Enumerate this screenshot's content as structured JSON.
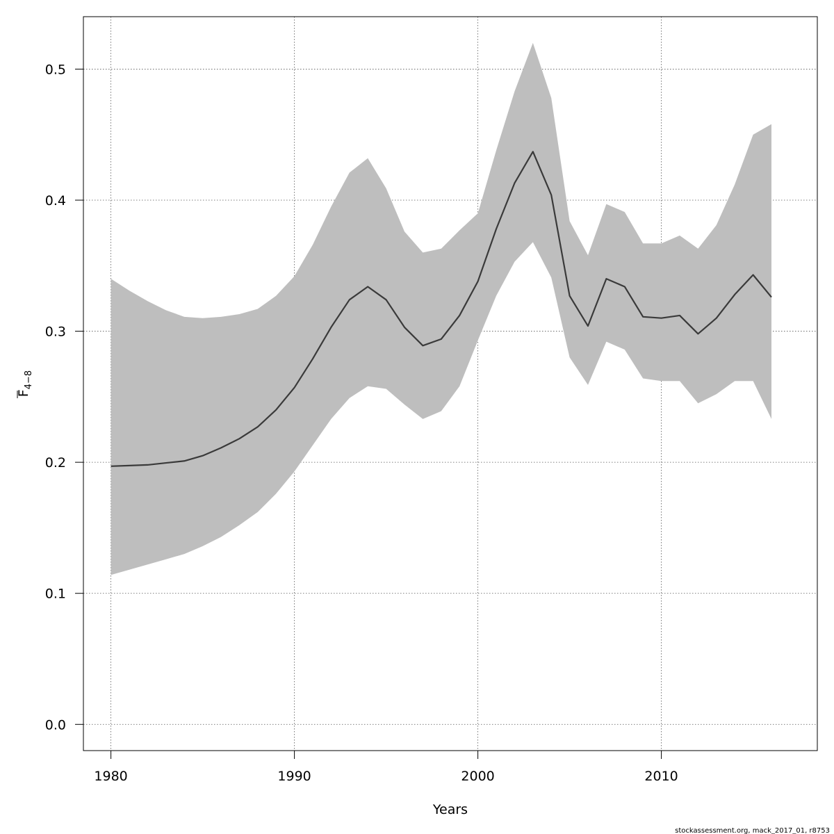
{
  "chart_data": {
    "type": "line",
    "xlabel": "Years",
    "ylabel": {
      "symbol": "F",
      "subscript": "4−8"
    },
    "xlim": [
      1978.5,
      2018.5
    ],
    "ylim": [
      -0.02,
      0.54
    ],
    "x_ticks": [
      1980,
      1990,
      2000,
      2010
    ],
    "y_ticks": [
      0.0,
      0.1,
      0.2,
      0.3,
      0.4,
      0.5
    ],
    "y_tick_labels": [
      "0.0",
      "0.1",
      "0.2",
      "0.3",
      "0.4",
      "0.5"
    ],
    "grid": true,
    "x": [
      1980,
      1981,
      1982,
      1983,
      1984,
      1985,
      1986,
      1987,
      1988,
      1989,
      1990,
      1991,
      1992,
      1993,
      1994,
      1995,
      1996,
      1997,
      1998,
      1999,
      2000,
      2001,
      2002,
      2003,
      2004,
      2005,
      2006,
      2007,
      2008,
      2009,
      2010,
      2011,
      2012,
      2013,
      2014,
      2015,
      2016
    ],
    "series": [
      {
        "values": [
          0.197,
          0.1975,
          0.198,
          0.1995,
          0.201,
          0.205,
          0.211,
          0.218,
          0.227,
          0.24,
          0.257,
          0.279,
          0.303,
          0.324,
          0.334,
          0.324,
          0.303,
          0.289,
          0.294,
          0.312,
          0.338,
          0.378,
          0.413,
          0.437,
          0.404,
          0.327,
          0.304,
          0.34,
          0.334,
          0.311,
          0.31,
          0.312,
          0.298,
          0.31,
          0.328,
          0.343,
          0.326
        ],
        "lower": [
          0.114,
          0.118,
          0.122,
          0.126,
          0.13,
          0.136,
          0.143,
          0.152,
          0.162,
          0.176,
          0.193,
          0.213,
          0.233,
          0.249,
          0.258,
          0.256,
          0.244,
          0.233,
          0.239,
          0.258,
          0.293,
          0.327,
          0.353,
          0.368,
          0.341,
          0.28,
          0.259,
          0.292,
          0.286,
          0.264,
          0.262,
          0.262,
          0.245,
          0.252,
          0.262,
          0.262,
          0.233
        ],
        "upper": [
          0.34,
          0.331,
          0.323,
          0.316,
          0.311,
          0.31,
          0.311,
          0.313,
          0.317,
          0.327,
          0.342,
          0.366,
          0.395,
          0.421,
          0.432,
          0.409,
          0.376,
          0.36,
          0.363,
          0.377,
          0.39,
          0.438,
          0.483,
          0.52,
          0.478,
          0.384,
          0.358,
          0.397,
          0.391,
          0.367,
          0.367,
          0.373,
          0.363,
          0.381,
          0.412,
          0.45,
          0.458
        ],
        "line_color": "#3a3a3a",
        "band_color": "#bebebe"
      }
    ]
  },
  "footnote": "stockassessment.org, mack_2017_01, r8753"
}
